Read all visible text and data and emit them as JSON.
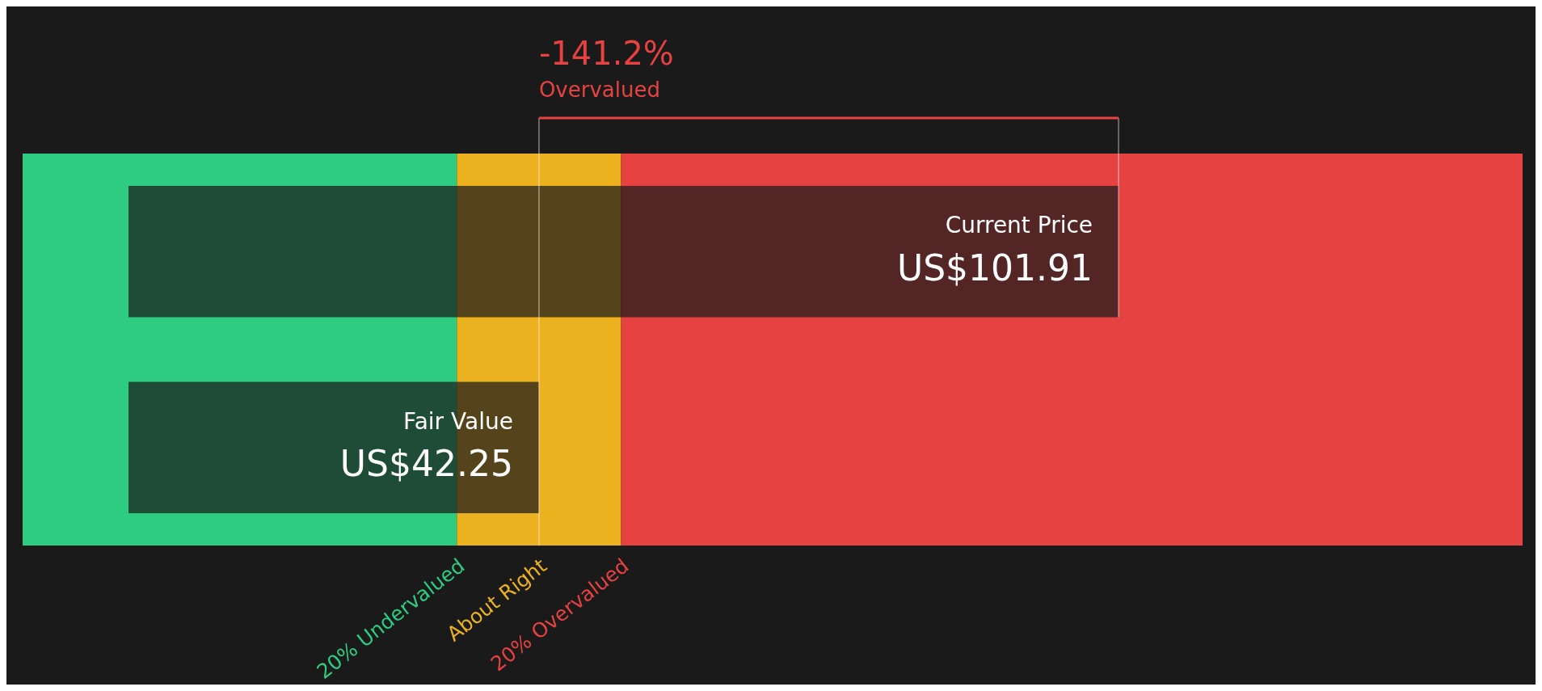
{
  "chart_data": {
    "type": "bar",
    "orientation": "horizontal",
    "categories": [
      "Current Price",
      "Fair Value"
    ],
    "values": [
      101.91,
      42.25
    ],
    "value_labels": [
      "US$101.91",
      "US$42.25"
    ],
    "colors": [
      "#1a1a1a",
      "#1a1a1a"
    ],
    "xlim": [
      -10.9,
      143.5
    ],
    "tick_labels": false,
    "grid": false,
    "bands": [
      {
        "axis": "x",
        "from": -10.9,
        "to": 33.8,
        "label": "20% Undervalued",
        "color": "#2ecc80"
      },
      {
        "axis": "x",
        "from": 33.8,
        "to": 50.7,
        "label": "About Right",
        "color": "#ecb11f"
      },
      {
        "axis": "x",
        "from": 50.7,
        "to": 143.5,
        "label": "20% Overvalued",
        "color": "#e74242"
      }
    ],
    "ref_lines": [
      {
        "axis": "x",
        "value": 42.25,
        "color": "#ffffff"
      }
    ],
    "annotations": [
      "-141.2%",
      "Overvalued"
    ]
  }
}
